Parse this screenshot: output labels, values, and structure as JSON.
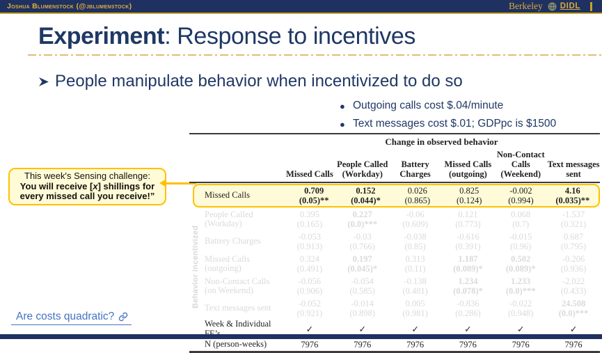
{
  "top_bar": {
    "author": "Joshua Blumenstock (@jblumenstock)",
    "berkeley": "Berkeley",
    "didl": "DIDL"
  },
  "title": {
    "emphasis": "Experiment",
    "rest": ": Response to incentives"
  },
  "bullet": {
    "text": "People manipulate behavior when incentivized to do so"
  },
  "sub_bullets": [
    {
      "text": "Outgoing calls cost $.04/minute"
    },
    {
      "text": "Text messages cost $.01; GDPpc is $1500"
    }
  ],
  "callout": {
    "line1": "This week's Sensing challenge:",
    "line2_pre": "You will receive [",
    "line2_x": "x",
    "line2_post": "] shillings for",
    "line3": "every missed call you receive!”"
  },
  "table": {
    "title": "Change in observed behavior",
    "side_label": "Behavior incentivized",
    "columns": [
      "Missed Calls",
      "People Called (Workday)",
      "Battery Charges",
      "Missed Calls (outgoing)",
      "Non-Contact Calls (Weekend)",
      "Text messages sent"
    ],
    "rows": [
      {
        "label": "Missed Calls",
        "state": "highlight",
        "cells": [
          {
            "est": "0.709",
            "p": "(0.05)**"
          },
          {
            "est": "0.152",
            "p": "(0.044)*"
          },
          {
            "est": "0.026",
            "p": "(0.865)"
          },
          {
            "est": "0.825",
            "p": "(0.124)"
          },
          {
            "est": "-0.002",
            "p": "(0.994)"
          },
          {
            "est": "4.16",
            "p": "(0.035)**"
          }
        ]
      },
      {
        "label": "People Called (Workday)",
        "state": "faded",
        "cells": [
          {
            "est": "0.395",
            "p": "(0.165)"
          },
          {
            "est": "0.227",
            "p": "(0.0)***"
          },
          {
            "est": "-0.06",
            "p": "(0.609)"
          },
          {
            "est": "0.121",
            "p": "(0.773)"
          },
          {
            "est": "0.068",
            "p": "(0.7)"
          },
          {
            "est": "-1.537",
            "p": "(0.321)"
          }
        ]
      },
      {
        "label": "Battery Charges",
        "state": "faded",
        "cells": [
          {
            "est": "-0.053",
            "p": "(0.913)"
          },
          {
            "est": "-0.03",
            "p": "(0.766)"
          },
          {
            "est": "-0.038",
            "p": "(0.85)"
          },
          {
            "est": "-0.616",
            "p": "(0.391)"
          },
          {
            "est": "-0.015",
            "p": "(0.96)"
          },
          {
            "est": "0.687",
            "p": "(0.795)"
          }
        ]
      },
      {
        "label": "Missed Calls (outgoing)",
        "state": "faded",
        "cells": [
          {
            "est": "0.324",
            "p": "(0.491)"
          },
          {
            "est": "0.197",
            "p": "(0.045)*"
          },
          {
            "est": "0.313",
            "p": "(0.11)"
          },
          {
            "est": "1.187",
            "p": "(0.089)*"
          },
          {
            "est": "0.502",
            "p": "(0.089)*"
          },
          {
            "est": "-0.206",
            "p": "(0.936)"
          }
        ]
      },
      {
        "label": "Non-Contact Calls (on Weekend)",
        "state": "faded",
        "cells": [
          {
            "est": "-0.056",
            "p": "(0.906)"
          },
          {
            "est": "-0.054",
            "p": "(0.585)"
          },
          {
            "est": "-0.138",
            "p": "(0.481)"
          },
          {
            "est": "1.234",
            "p": "(0.078)*"
          },
          {
            "est": "1.233",
            "p": "(0.0)***"
          },
          {
            "est": "-2.022",
            "p": "(0.433)"
          }
        ]
      },
      {
        "label": "Text messages sent",
        "state": "faded",
        "cells": [
          {
            "est": "-0.052",
            "p": "(0.921)"
          },
          {
            "est": "-0.014",
            "p": "(0.898)"
          },
          {
            "est": "0.005",
            "p": "(0.981)"
          },
          {
            "est": "-0.836",
            "p": "(0.286)"
          },
          {
            "est": "-0.022",
            "p": "(0.948)"
          },
          {
            "est": "24.508",
            "p": "(0.0)***"
          }
        ]
      }
    ],
    "fe_row": {
      "label": "Week & Individual FE’s",
      "check": "✓"
    },
    "n_row": {
      "label": "N (person-weeks)",
      "value": "7976"
    }
  },
  "link": {
    "label": "Are costs quadratic?"
  },
  "colors": {
    "navy": "#1E3160",
    "title_navy": "#1F3864",
    "gold": "#C9A227",
    "gold_text": "#D9A93F",
    "highlight_bg": "#FFFBD8",
    "highlight_border": "#FFC000",
    "faded_text": "#DADADA",
    "link_blue": "#4472C4"
  }
}
